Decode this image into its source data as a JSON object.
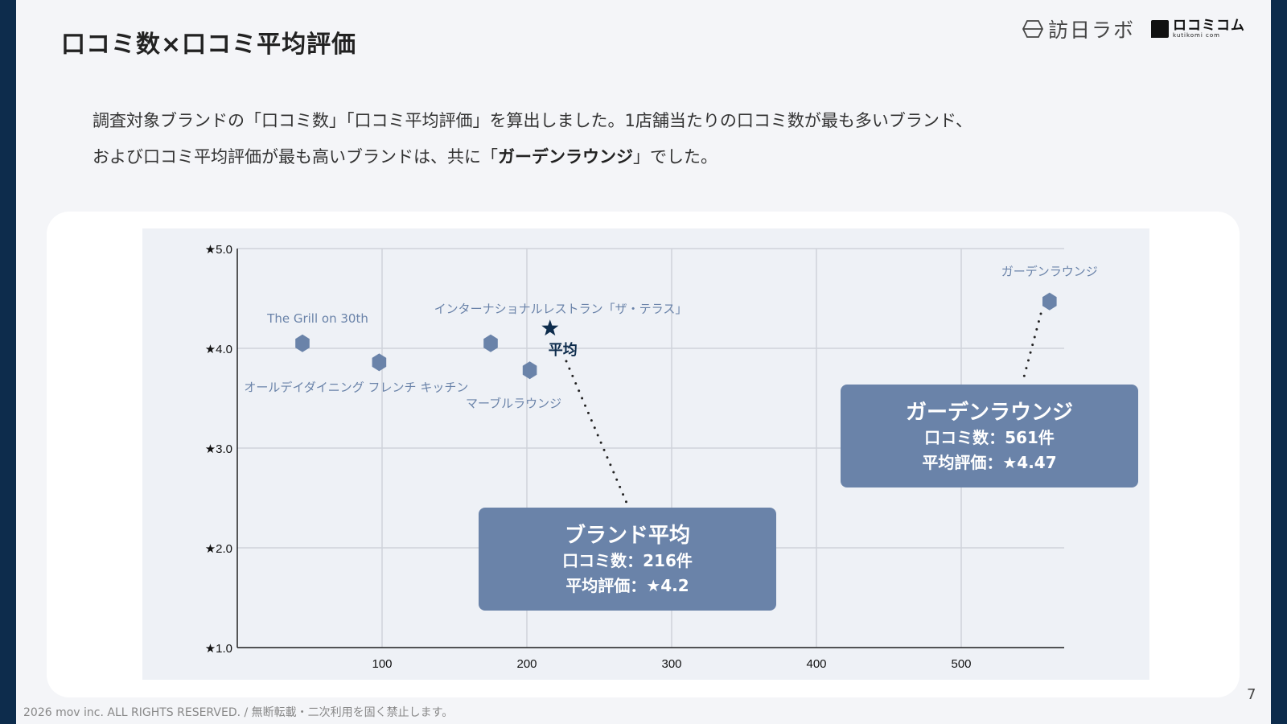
{
  "header": {
    "title": "口コミ数×口コミ平均評価",
    "logo_houniti": "訪日ラボ",
    "logo_kutikomi": "ロコミコム",
    "logo_kutikomi_sub": "kutikomi com"
  },
  "description": {
    "line1": "調査対象ブランドの「口コミ数」「口コミ平均評価」を算出しました。1店舗当たりの口コミ数が最も多いブランド、",
    "line2_pre": "および口コミ平均評価が最も高いブランドは、共に「",
    "line2_bold": "ガーデンラウンジ",
    "line2_post": "」でした。"
  },
  "chart_data": {
    "type": "scatter",
    "xlim": [
      0,
      573
    ],
    "ylim": [
      1.0,
      5.0
    ],
    "x_ticks": [
      100,
      200,
      300,
      400,
      500
    ],
    "x_tick_labels": [
      "100",
      "200",
      "300",
      "400",
      "500"
    ],
    "y_ticks": [
      1,
      2,
      3,
      4,
      5
    ],
    "y_tick_labels": [
      "★1.0",
      "★2.0",
      "★3.0",
      "★4.0",
      "★5.0"
    ],
    "grid": true,
    "points": [
      {
        "label": "The Grill on 30th",
        "x": 45,
        "y": 4.05
      },
      {
        "label": "オールデイダイニング フレンチ キッチン",
        "x": 98,
        "y": 3.86
      },
      {
        "label": "インターナショナルレストラン「ザ・テラス」",
        "x": 175,
        "y": 4.05
      },
      {
        "label": "マーブルラウンジ",
        "x": 202,
        "y": 3.78
      },
      {
        "label": "ガーデンラウンジ",
        "x": 561,
        "y": 4.47
      }
    ],
    "average": {
      "label": "平均",
      "x": 216,
      "y": 4.2
    },
    "colors": {
      "point": "#6a83a9",
      "average": "#0d2c4c",
      "grid": "#cfd3da"
    }
  },
  "callouts": {
    "average": {
      "title": "ブランド平均",
      "count": "口コミ数：216件",
      "rating": "平均評価：★4.2"
    },
    "garden": {
      "title": "ガーデンラウンジ",
      "count": "口コミ数：561件",
      "rating": "平均評価：★4.47"
    }
  },
  "footer": {
    "copyright": "2026 mov inc. ALL RIGHTS RESERVED. / 無断転載・二次利用を固く禁止します。",
    "page": "7"
  }
}
